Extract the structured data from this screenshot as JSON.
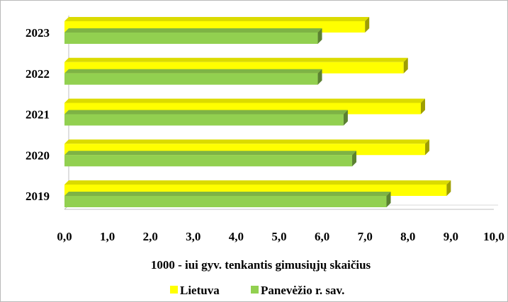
{
  "chart_data": {
    "type": "bar",
    "orientation": "horizontal",
    "style": "3d",
    "categories": [
      "2019",
      "2020",
      "2021",
      "2022",
      "2023"
    ],
    "series": [
      {
        "name": "Lietuva",
        "color": "#ffff00",
        "values": [
          8.9,
          8.4,
          8.3,
          7.9,
          7.0
        ]
      },
      {
        "name": "Panevėžio r. sav.",
        "color": "#92d050",
        "values": [
          7.5,
          6.7,
          6.5,
          5.9,
          5.9
        ]
      }
    ],
    "xlabel": "1000 - iui gyv. tenkantis gimusiųjų  skaičius",
    "ylabel": "",
    "xlim": [
      0,
      10
    ],
    "xticks": [
      "0,0",
      "1,0",
      "2,0",
      "3,0",
      "4,0",
      "5,0",
      "6,0",
      "7,0",
      "8,0",
      "9,0",
      "10,0"
    ],
    "grid": false,
    "legend_position": "bottom"
  }
}
